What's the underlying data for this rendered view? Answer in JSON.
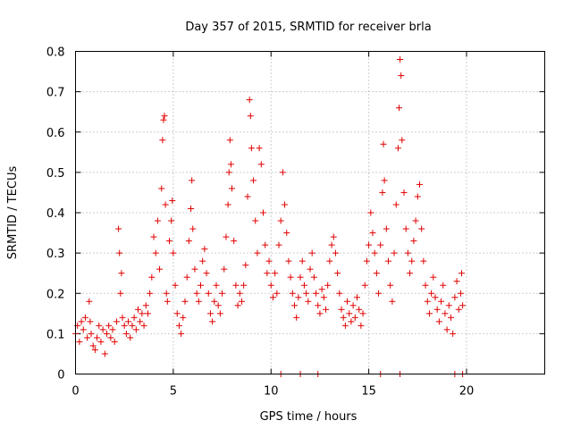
{
  "chart_data": {
    "type": "scatter",
    "title": "Day 357 of 2015, SRMTID for receiver brla",
    "xlabel": "GPS time / hours",
    "ylabel": "SRMTID / TECUs",
    "xlim": [
      0,
      24
    ],
    "ylim": [
      0,
      0.8
    ],
    "grid": true,
    "marker": "+",
    "color": "#e00000",
    "x_ticks": [
      {
        "value": 0,
        "label": "0"
      },
      {
        "value": 5,
        "label": "5"
      },
      {
        "value": 10,
        "label": "10"
      },
      {
        "value": 15,
        "label": "15"
      },
      {
        "value": 20,
        "label": "20"
      }
    ],
    "y_ticks": [
      {
        "value": 0,
        "label": "0"
      },
      {
        "value": 0.1,
        "label": "0.1"
      },
      {
        "value": 0.2,
        "label": "0.2"
      },
      {
        "value": 0.3,
        "label": "0.3"
      },
      {
        "value": 0.4,
        "label": "0.4"
      },
      {
        "value": 0.5,
        "label": "0.5"
      },
      {
        "value": 0.6,
        "label": "0.6"
      },
      {
        "value": 0.7,
        "label": "0.7"
      },
      {
        "value": 0.8,
        "label": "0.8"
      }
    ],
    "series": [
      {
        "name": "SRMTID",
        "points": [
          [
            0.0,
            0.1
          ],
          [
            0.1,
            0.12
          ],
          [
            0.2,
            0.08
          ],
          [
            0.3,
            0.13
          ],
          [
            0.4,
            0.11
          ],
          [
            0.5,
            0.14
          ],
          [
            0.6,
            0.09
          ],
          [
            0.7,
            0.18
          ],
          [
            0.75,
            0.13
          ],
          [
            0.8,
            0.1
          ],
          [
            0.9,
            0.07
          ],
          [
            1.0,
            0.06
          ],
          [
            1.1,
            0.09
          ],
          [
            1.2,
            0.12
          ],
          [
            1.3,
            0.08
          ],
          [
            1.4,
            0.11
          ],
          [
            1.5,
            0.05
          ],
          [
            1.6,
            0.1
          ],
          [
            1.7,
            0.12
          ],
          [
            1.8,
            0.09
          ],
          [
            1.9,
            0.11
          ],
          [
            2.0,
            0.08
          ],
          [
            2.1,
            0.13
          ],
          [
            2.2,
            0.36
          ],
          [
            2.25,
            0.3
          ],
          [
            2.3,
            0.2
          ],
          [
            2.35,
            0.25
          ],
          [
            2.4,
            0.14
          ],
          [
            2.5,
            0.12
          ],
          [
            2.6,
            0.1
          ],
          [
            2.7,
            0.13
          ],
          [
            2.8,
            0.09
          ],
          [
            2.9,
            0.12
          ],
          [
            3.0,
            0.14
          ],
          [
            3.1,
            0.11
          ],
          [
            3.2,
            0.16
          ],
          [
            3.3,
            0.13
          ],
          [
            3.4,
            0.15
          ],
          [
            3.5,
            0.12
          ],
          [
            3.6,
            0.17
          ],
          [
            3.7,
            0.15
          ],
          [
            3.8,
            0.2
          ],
          [
            3.9,
            0.24
          ],
          [
            4.0,
            0.34
          ],
          [
            4.1,
            0.3
          ],
          [
            4.2,
            0.38
          ],
          [
            4.3,
            0.26
          ],
          [
            4.4,
            0.46
          ],
          [
            4.45,
            0.58
          ],
          [
            4.5,
            0.63
          ],
          [
            4.55,
            0.64
          ],
          [
            4.6,
            0.42
          ],
          [
            4.65,
            0.2
          ],
          [
            4.7,
            0.18
          ],
          [
            4.8,
            0.33
          ],
          [
            4.9,
            0.38
          ],
          [
            4.95,
            0.43
          ],
          [
            5.0,
            0.3
          ],
          [
            5.1,
            0.22
          ],
          [
            5.2,
            0.15
          ],
          [
            5.3,
            0.12
          ],
          [
            5.4,
            0.1
          ],
          [
            5.5,
            0.14
          ],
          [
            5.6,
            0.18
          ],
          [
            5.7,
            0.24
          ],
          [
            5.8,
            0.33
          ],
          [
            5.9,
            0.41
          ],
          [
            5.95,
            0.48
          ],
          [
            6.0,
            0.36
          ],
          [
            6.1,
            0.26
          ],
          [
            6.2,
            0.2
          ],
          [
            6.3,
            0.18
          ],
          [
            6.4,
            0.22
          ],
          [
            6.5,
            0.28
          ],
          [
            6.6,
            0.31
          ],
          [
            6.7,
            0.25
          ],
          [
            6.8,
            0.2
          ],
          [
            6.9,
            0.15
          ],
          [
            7.0,
            0.13
          ],
          [
            7.1,
            0.18
          ],
          [
            7.2,
            0.22
          ],
          [
            7.3,
            0.17
          ],
          [
            7.4,
            0.15
          ],
          [
            7.5,
            0.2
          ],
          [
            7.6,
            0.26
          ],
          [
            7.7,
            0.34
          ],
          [
            7.8,
            0.42
          ],
          [
            7.85,
            0.5
          ],
          [
            7.9,
            0.58
          ],
          [
            7.95,
            0.52
          ],
          [
            8.0,
            0.46
          ],
          [
            8.1,
            0.33
          ],
          [
            8.2,
            0.22
          ],
          [
            8.3,
            0.17
          ],
          [
            8.4,
            0.2
          ],
          [
            8.5,
            0.18
          ],
          [
            8.6,
            0.22
          ],
          [
            8.7,
            0.27
          ],
          [
            8.8,
            0.44
          ],
          [
            8.9,
            0.68
          ],
          [
            8.95,
            0.64
          ],
          [
            9.0,
            0.56
          ],
          [
            9.1,
            0.48
          ],
          [
            9.2,
            0.38
          ],
          [
            9.3,
            0.3
          ],
          [
            9.4,
            0.56
          ],
          [
            9.5,
            0.52
          ],
          [
            9.6,
            0.4
          ],
          [
            9.7,
            0.32
          ],
          [
            9.8,
            0.25
          ],
          [
            9.9,
            0.28
          ],
          [
            10.0,
            0.22
          ],
          [
            10.1,
            0.19
          ],
          [
            10.2,
            0.25
          ],
          [
            10.3,
            0.2
          ],
          [
            10.4,
            0.32
          ],
          [
            10.5,
            0.38
          ],
          [
            10.6,
            0.5
          ],
          [
            10.7,
            0.42
          ],
          [
            10.8,
            0.35
          ],
          [
            10.9,
            0.28
          ],
          [
            11.0,
            0.24
          ],
          [
            11.1,
            0.2
          ],
          [
            11.2,
            0.17
          ],
          [
            11.3,
            0.14
          ],
          [
            11.4,
            0.19
          ],
          [
            11.5,
            0.24
          ],
          [
            11.6,
            0.28
          ],
          [
            11.7,
            0.22
          ],
          [
            11.8,
            0.2
          ],
          [
            11.9,
            0.18
          ],
          [
            12.0,
            0.26
          ],
          [
            12.1,
            0.3
          ],
          [
            12.2,
            0.24
          ],
          [
            12.3,
            0.2
          ],
          [
            12.4,
            0.17
          ],
          [
            12.5,
            0.15
          ],
          [
            12.6,
            0.21
          ],
          [
            12.7,
            0.19
          ],
          [
            12.8,
            0.16
          ],
          [
            12.9,
            0.22
          ],
          [
            13.0,
            0.28
          ],
          [
            13.1,
            0.32
          ],
          [
            13.2,
            0.34
          ],
          [
            13.3,
            0.3
          ],
          [
            13.4,
            0.25
          ],
          [
            13.5,
            0.2
          ],
          [
            13.6,
            0.16
          ],
          [
            13.7,
            0.14
          ],
          [
            13.8,
            0.12
          ],
          [
            13.9,
            0.18
          ],
          [
            14.0,
            0.15
          ],
          [
            14.1,
            0.13
          ],
          [
            14.2,
            0.17
          ],
          [
            14.3,
            0.14
          ],
          [
            14.4,
            0.19
          ],
          [
            14.5,
            0.16
          ],
          [
            14.6,
            0.12
          ],
          [
            14.7,
            0.15
          ],
          [
            14.8,
            0.22
          ],
          [
            14.9,
            0.28
          ],
          [
            15.0,
            0.32
          ],
          [
            15.1,
            0.4
          ],
          [
            15.2,
            0.35
          ],
          [
            15.3,
            0.3
          ],
          [
            15.4,
            0.25
          ],
          [
            15.5,
            0.2
          ],
          [
            15.6,
            0.32
          ],
          [
            15.7,
            0.45
          ],
          [
            15.75,
            0.57
          ],
          [
            15.8,
            0.48
          ],
          [
            15.9,
            0.36
          ],
          [
            16.0,
            0.28
          ],
          [
            16.1,
            0.22
          ],
          [
            16.2,
            0.18
          ],
          [
            16.3,
            0.3
          ],
          [
            16.4,
            0.42
          ],
          [
            16.5,
            0.56
          ],
          [
            16.55,
            0.66
          ],
          [
            16.6,
            0.78
          ],
          [
            16.65,
            0.74
          ],
          [
            16.7,
            0.58
          ],
          [
            16.8,
            0.45
          ],
          [
            16.9,
            0.36
          ],
          [
            17.0,
            0.3
          ],
          [
            17.1,
            0.25
          ],
          [
            17.2,
            0.28
          ],
          [
            17.3,
            0.33
          ],
          [
            17.4,
            0.38
          ],
          [
            17.5,
            0.44
          ],
          [
            17.6,
            0.47
          ],
          [
            17.7,
            0.36
          ],
          [
            17.8,
            0.28
          ],
          [
            17.9,
            0.22
          ],
          [
            18.0,
            0.18
          ],
          [
            18.1,
            0.15
          ],
          [
            18.2,
            0.2
          ],
          [
            18.3,
            0.24
          ],
          [
            18.4,
            0.19
          ],
          [
            18.5,
            0.16
          ],
          [
            18.6,
            0.13
          ],
          [
            18.7,
            0.18
          ],
          [
            18.8,
            0.22
          ],
          [
            18.9,
            0.15
          ],
          [
            19.0,
            0.11
          ],
          [
            19.1,
            0.17
          ],
          [
            19.2,
            0.14
          ],
          [
            19.3,
            0.1
          ],
          [
            19.4,
            0.19
          ],
          [
            19.5,
            0.23
          ],
          [
            19.6,
            0.16
          ],
          [
            19.7,
            0.2
          ],
          [
            19.75,
            0.25
          ],
          [
            19.8,
            0.17
          ],
          [
            10.5,
            0.0
          ],
          [
            11.5,
            0.0
          ],
          [
            12.4,
            0.0
          ],
          [
            15.6,
            0.0
          ],
          [
            16.6,
            0.0
          ],
          [
            19.4,
            0.0
          ],
          [
            19.8,
            0.0
          ]
        ]
      }
    ]
  }
}
